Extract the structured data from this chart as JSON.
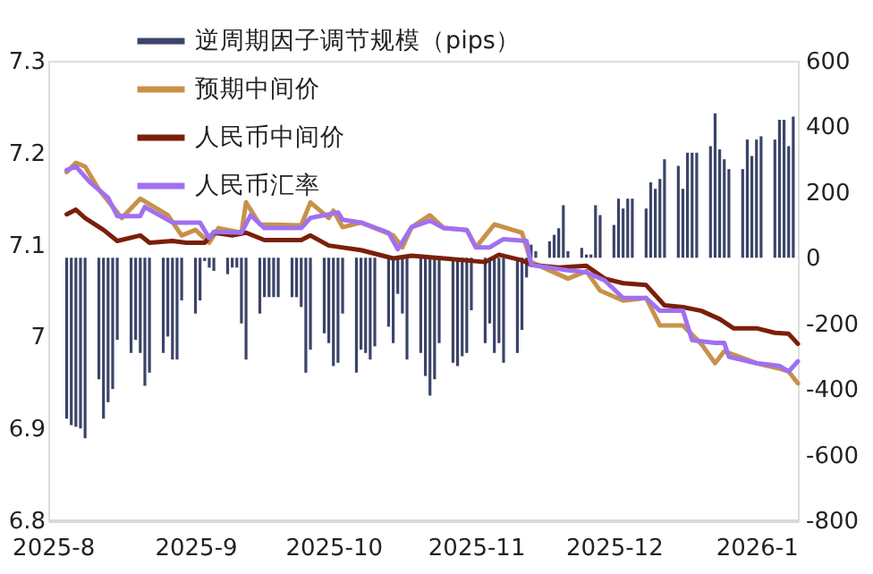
{
  "chart_data": {
    "type": "line",
    "xlim": [
      "2025-07-31",
      "2026-01-10"
    ],
    "xticks": [
      {
        "value": "2025-08-01",
        "label": "2025-8"
      },
      {
        "value": "2025-09-01",
        "label": "2025-9"
      },
      {
        "value": "2025-10-01",
        "label": "2025-10"
      },
      {
        "value": "2025-11-01",
        "label": "2025-11"
      },
      {
        "value": "2025-12-01",
        "label": "2025-12"
      },
      {
        "value": "2026-01-01",
        "label": "2026-1"
      }
    ],
    "ylim": [
      6.8,
      7.3
    ],
    "yticks": [
      6.8,
      6.9,
      7,
      7.1,
      7.2,
      7.3
    ],
    "y2lim": [
      -800,
      600
    ],
    "y2ticks": [
      -800,
      -600,
      -400,
      -200,
      0,
      200,
      400,
      600
    ],
    "grid": false,
    "legend": "top left",
    "series": [
      {
        "name": "逆周期因子调节规模（pips）",
        "type": "bar",
        "axis": "y2",
        "color": "#3b4468",
        "x": [
          "2025-08-04",
          "2025-08-05",
          "2025-08-06",
          "2025-08-07",
          "2025-08-08",
          "2025-08-11",
          "2025-08-12",
          "2025-08-13",
          "2025-08-14",
          "2025-08-15",
          "2025-08-18",
          "2025-08-19",
          "2025-08-20",
          "2025-08-21",
          "2025-08-22",
          "2025-08-25",
          "2025-08-26",
          "2025-08-27",
          "2025-08-28",
          "2025-08-29",
          "2025-09-01",
          "2025-09-02",
          "2025-09-03",
          "2025-09-04",
          "2025-09-05",
          "2025-09-08",
          "2025-09-09",
          "2025-09-10",
          "2025-09-11",
          "2025-09-12",
          "2025-09-15",
          "2025-09-16",
          "2025-09-17",
          "2025-09-18",
          "2025-09-19",
          "2025-09-22",
          "2025-09-23",
          "2025-09-24",
          "2025-09-25",
          "2025-09-26",
          "2025-09-29",
          "2025-09-30",
          "2025-10-01",
          "2025-10-02",
          "2025-10-03",
          "2025-10-06",
          "2025-10-07",
          "2025-10-08",
          "2025-10-09",
          "2025-10-10",
          "2025-10-13",
          "2025-10-14",
          "2025-10-15",
          "2025-10-16",
          "2025-10-17",
          "2025-10-20",
          "2025-10-21",
          "2025-10-22",
          "2025-10-23",
          "2025-10-24",
          "2025-10-27",
          "2025-10-28",
          "2025-10-29",
          "2025-10-30",
          "2025-10-31",
          "2025-11-03",
          "2025-11-04",
          "2025-11-05",
          "2025-11-06",
          "2025-11-07",
          "2025-11-10",
          "2025-11-11",
          "2025-11-12",
          "2025-11-13",
          "2025-11-14",
          "2025-11-17",
          "2025-11-18",
          "2025-11-19",
          "2025-11-20",
          "2025-11-21",
          "2025-11-24",
          "2025-11-25",
          "2025-11-26",
          "2025-11-27",
          "2025-11-28",
          "2025-12-01",
          "2025-12-02",
          "2025-12-03",
          "2025-12-04",
          "2025-12-05",
          "2025-12-08",
          "2025-12-09",
          "2025-12-10",
          "2025-12-11",
          "2025-12-12",
          "2025-12-15",
          "2025-12-16",
          "2025-12-17",
          "2025-12-18",
          "2025-12-19",
          "2025-12-22",
          "2025-12-23",
          "2025-12-24",
          "2025-12-25",
          "2025-12-26",
          "2025-12-29",
          "2025-12-30",
          "2025-12-31",
          "2026-01-01",
          "2026-01-02",
          "2026-01-05",
          "2026-01-06",
          "2026-01-07",
          "2026-01-08",
          "2026-01-09"
        ],
        "values": [
          -490,
          -510,
          -515,
          -520,
          -550,
          -370,
          -490,
          -440,
          -400,
          -250,
          -290,
          -250,
          -290,
          -390,
          -350,
          -290,
          -240,
          -310,
          -310,
          -130,
          -170,
          -130,
          -10,
          -30,
          -40,
          -50,
          -30,
          -30,
          -200,
          -310,
          -170,
          -120,
          -120,
          -120,
          -120,
          -120,
          -120,
          -150,
          -350,
          -280,
          -230,
          -260,
          -330,
          -320,
          -170,
          -350,
          -280,
          -290,
          -310,
          -270,
          -210,
          -260,
          -110,
          -170,
          -310,
          -290,
          -360,
          -420,
          -370,
          -260,
          -320,
          -330,
          -300,
          -290,
          -160,
          -260,
          -200,
          -290,
          -260,
          -320,
          -290,
          -220,
          -60,
          40,
          20,
          50,
          70,
          90,
          160,
          20,
          30,
          10,
          10,
          160,
          130,
          100,
          180,
          150,
          180,
          180,
          150,
          230,
          210,
          240,
          300,
          280,
          210,
          320,
          320,
          320,
          340,
          440,
          330,
          300,
          270,
          270,
          360,
          310,
          360,
          370,
          360,
          420,
          420,
          340,
          430
        ]
      },
      {
        "name": "预期中间价",
        "axis": "y",
        "color": "#c8914a",
        "x": [
          "2025-08-04",
          "2025-08-06",
          "2025-08-08",
          "2025-08-11",
          "2025-08-15",
          "2025-08-16",
          "2025-08-20",
          "2025-08-26",
          "2025-08-29",
          "2025-09-01",
          "2025-09-04",
          "2025-09-06",
          "2025-09-11",
          "2025-09-12",
          "2025-09-15",
          "2025-09-24",
          "2025-09-26",
          "2025-09-30",
          "2025-10-01",
          "2025-10-03",
          "2025-10-07",
          "2025-10-14",
          "2025-10-16",
          "2025-10-18",
          "2025-10-22",
          "2025-10-25",
          "2025-10-30",
          "2025-11-01",
          "2025-11-05",
          "2025-11-11",
          "2025-11-13",
          "2025-11-21",
          "2025-11-25",
          "2025-11-28",
          "2025-12-03",
          "2025-12-08",
          "2025-12-11",
          "2025-12-16",
          "2025-12-20",
          "2025-12-23",
          "2025-12-25",
          "2026-01-01",
          "2026-01-06",
          "2026-01-08",
          "2026-01-10"
        ],
        "values": [
          7.179,
          7.189,
          7.185,
          7.16,
          7.135,
          7.129,
          7.15,
          7.132,
          7.11,
          7.116,
          7.102,
          7.118,
          7.113,
          7.146,
          7.122,
          7.121,
          7.146,
          7.129,
          7.137,
          7.119,
          7.124,
          7.11,
          7.097,
          7.119,
          7.132,
          7.118,
          7.116,
          7.097,
          7.122,
          7.113,
          7.081,
          7.063,
          7.071,
          7.05,
          7.039,
          7.042,
          7.012,
          7.012,
          6.992,
          6.971,
          6.984,
          6.971,
          6.965,
          6.962,
          6.949
        ]
      },
      {
        "name": "人民币中间价",
        "axis": "y",
        "color": "#7a1f0a",
        "x": [
          "2025-08-04",
          "2025-08-06",
          "2025-08-08",
          "2025-08-12",
          "2025-08-15",
          "2025-08-20",
          "2025-08-22",
          "2025-08-27",
          "2025-08-30",
          "2025-09-03",
          "2025-09-05",
          "2025-09-09",
          "2025-09-12",
          "2025-09-16",
          "2025-09-24",
          "2025-09-26",
          "2025-09-30",
          "2025-10-07",
          "2025-10-14",
          "2025-10-18",
          "2025-10-25",
          "2025-11-03",
          "2025-11-06",
          "2025-11-11",
          "2025-11-13",
          "2025-11-19",
          "2025-11-25",
          "2025-11-29",
          "2025-12-03",
          "2025-12-08",
          "2025-12-12",
          "2025-12-16",
          "2025-12-20",
          "2025-12-24",
          "2025-12-27",
          "2026-01-01",
          "2026-01-05",
          "2026-01-08",
          "2026-01-10"
        ],
        "values": [
          7.133,
          7.138,
          7.129,
          7.116,
          7.104,
          7.11,
          7.102,
          7.104,
          7.102,
          7.102,
          7.113,
          7.11,
          7.113,
          7.105,
          7.105,
          7.11,
          7.099,
          7.094,
          7.085,
          7.088,
          7.085,
          7.081,
          7.089,
          7.083,
          7.078,
          7.075,
          7.077,
          7.063,
          7.058,
          7.056,
          7.034,
          7.032,
          7.028,
          7.019,
          7.009,
          7.009,
          7.004,
          7.003,
          6.992
        ]
      },
      {
        "name": "人民币汇率",
        "axis": "y",
        "color": "#a070f0",
        "x": [
          "2025-08-04",
          "2025-08-06",
          "2025-08-09",
          "2025-08-13",
          "2025-08-15",
          "2025-08-20",
          "2025-08-21",
          "2025-08-27",
          "2025-09-02",
          "2025-09-04",
          "2025-09-05",
          "2025-09-11",
          "2025-09-13",
          "2025-09-16",
          "2025-09-24",
          "2025-09-26",
          "2025-10-02",
          "2025-10-03",
          "2025-10-07",
          "2025-10-13",
          "2025-10-15",
          "2025-10-18",
          "2025-10-22",
          "2025-10-25",
          "2025-10-30",
          "2025-11-01",
          "2025-11-04",
          "2025-11-07",
          "2025-11-12",
          "2025-11-13",
          "2025-11-21",
          "2025-11-25",
          "2025-11-29",
          "2025-12-03",
          "2025-12-08",
          "2025-12-11",
          "2025-12-16",
          "2025-12-18",
          "2025-12-23",
          "2025-12-25",
          "2025-12-26",
          "2026-01-01",
          "2026-01-06",
          "2026-01-08",
          "2026-01-10"
        ],
        "values": [
          7.181,
          7.185,
          7.168,
          7.151,
          7.131,
          7.131,
          7.141,
          7.124,
          7.124,
          7.107,
          7.114,
          7.113,
          7.132,
          7.118,
          7.118,
          7.129,
          7.135,
          7.127,
          7.124,
          7.113,
          7.095,
          7.119,
          7.126,
          7.118,
          7.116,
          7.097,
          7.097,
          7.106,
          7.104,
          7.078,
          7.072,
          7.07,
          7.061,
          7.042,
          7.042,
          7.028,
          7.028,
          6.996,
          6.993,
          6.993,
          6.978,
          6.971,
          6.968,
          6.962,
          6.973
        ]
      }
    ]
  }
}
